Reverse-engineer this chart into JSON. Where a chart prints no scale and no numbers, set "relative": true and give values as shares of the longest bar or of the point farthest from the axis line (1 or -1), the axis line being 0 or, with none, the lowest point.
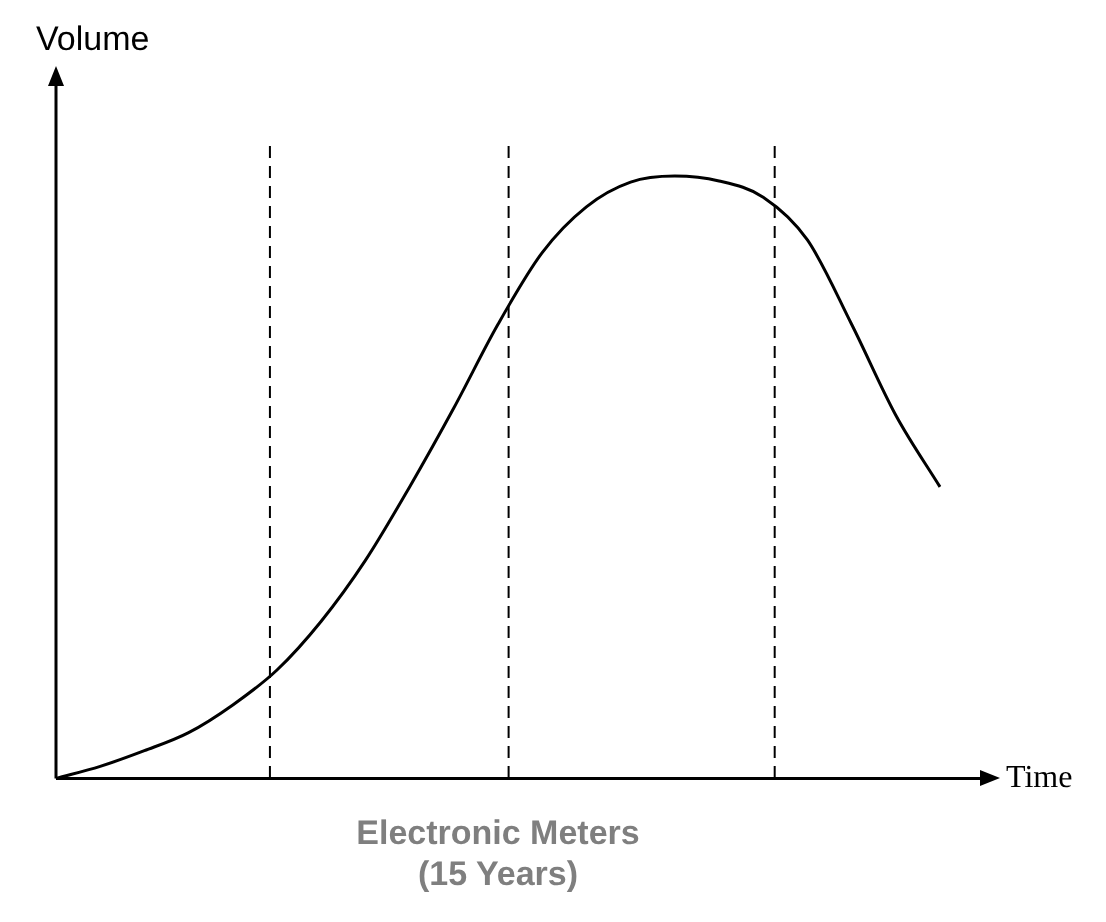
{
  "chart_data": {
    "type": "line",
    "title": "Electronic Meters\n(15 Years)",
    "ylabel": "Volume",
    "xlabel": "Time",
    "relative": true,
    "marker": "none",
    "line_style": "solid",
    "grid": false,
    "legend": false,
    "categories": [
      null,
      null,
      null,
      null,
      null,
      null,
      null,
      null,
      null,
      null,
      null,
      null,
      null,
      null,
      null,
      null,
      null,
      null,
      null,
      null,
      null
    ],
    "series": [
      {
        "color": "#000000",
        "values": [
          0,
          0.02,
          0.046,
          0.076,
          0.122,
          0.18,
          0.261,
          0.362,
          0.484,
          0.615,
          0.754,
          0.873,
          0.949,
          0.99,
          1,
          0.992,
          0.965,
          0.894,
          0.754,
          0.603,
          0.484
        ]
      }
    ]
  }
}
